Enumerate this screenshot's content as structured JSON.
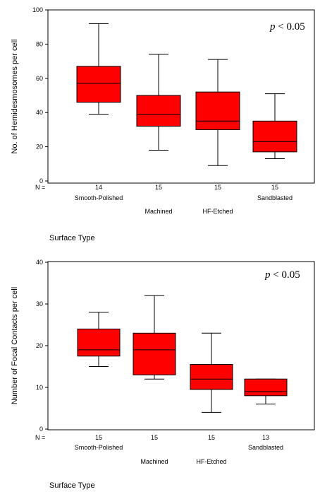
{
  "chart_data": [
    {
      "type": "box",
      "ylabel": "No. of Hemidesmosomes per cell",
      "xlabel": "Surface Type",
      "annotation": {
        "italic": "p",
        "rest": " < 0.05"
      },
      "n_label": "N =",
      "ylim": [
        0,
        100
      ],
      "yticks": [
        0,
        20,
        40,
        60,
        80,
        100
      ],
      "categories": [
        "Smooth-Polished",
        "Machined",
        "HF-Etched",
        "Sandblasted"
      ],
      "n": [
        "14",
        "15",
        "15",
        "15"
      ],
      "boxes": [
        {
          "min": 39,
          "q1": 46,
          "median": 57,
          "q3": 67,
          "max": 92
        },
        {
          "min": 18,
          "q1": 32,
          "median": 39,
          "q3": 50,
          "max": 74
        },
        {
          "min": 9,
          "q1": 30,
          "median": 35,
          "q3": 52,
          "max": 71
        },
        {
          "min": 13,
          "q1": 17,
          "median": 23,
          "q3": 35,
          "max": 51
        }
      ],
      "colors": {
        "box": "#ff0000",
        "outline": "#000000"
      }
    },
    {
      "type": "box",
      "ylabel": "Number of Focal Contacts per cell",
      "xlabel": "Surface Type",
      "annotation": {
        "italic": "p",
        "rest": " < 0.05"
      },
      "n_label": "N =",
      "ylim": [
        0,
        40
      ],
      "yticks": [
        0,
        10,
        20,
        30,
        40
      ],
      "categories": [
        "Smooth-Polished",
        "Machined",
        "HF-Etched",
        "Sandblasted"
      ],
      "n": [
        "15",
        "15",
        "15",
        "13"
      ],
      "boxes": [
        {
          "min": 15,
          "q1": 17.5,
          "median": 19,
          "q3": 24,
          "max": 28
        },
        {
          "min": 12,
          "q1": 13,
          "median": 19,
          "q3": 23,
          "max": 32
        },
        {
          "min": 4,
          "q1": 9.5,
          "median": 12,
          "q3": 15.5,
          "max": 23
        },
        {
          "min": 6,
          "q1": 8,
          "median": 9,
          "q3": 12,
          "max": 12
        }
      ],
      "colors": {
        "box": "#ff0000",
        "outline": "#000000"
      }
    }
  ]
}
